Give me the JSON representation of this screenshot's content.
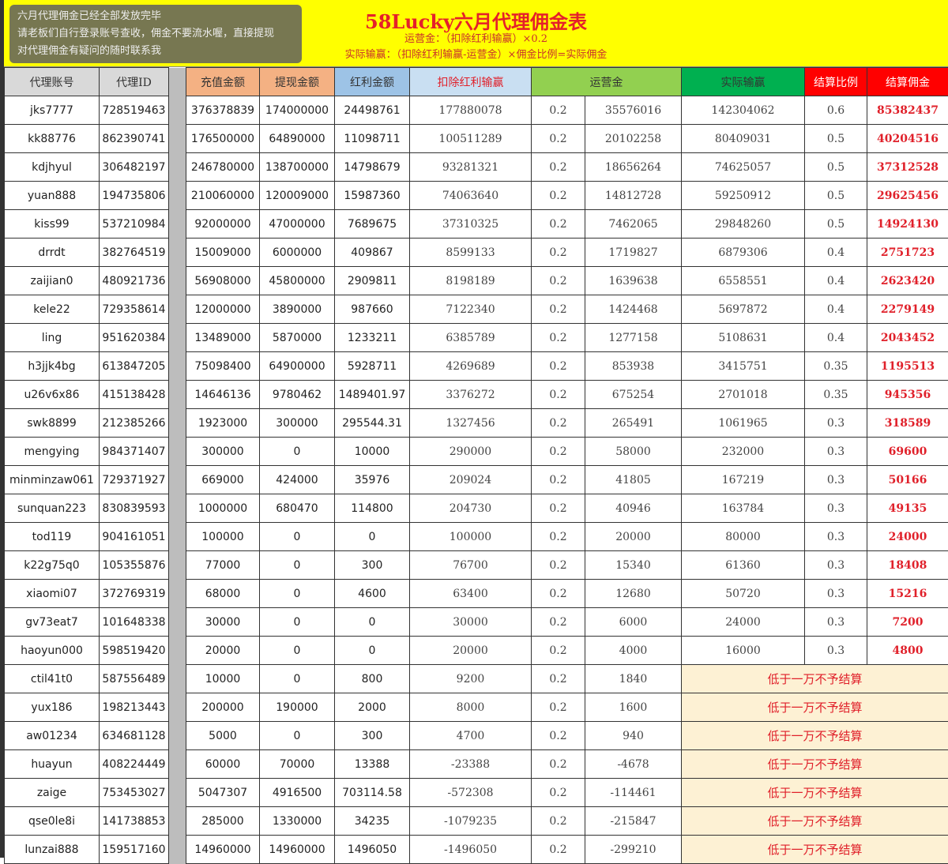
{
  "title": "58Lucky六月代理佣金表",
  "formula1": "运营金：（扣除红利输赢）×0.2",
  "formula2": "实际输赢：（扣除红利输赢-运营金）×佣金比例=实际佣金",
  "headers": [
    {
      "label": "代理账号",
      "bg": "#d9d9d9",
      "color": "#333"
    },
    {
      "label": "代理ID",
      "bg": "#d9d9d9",
      "color": "#333"
    },
    {
      "label": "",
      "bg": "#bdbdbd",
      "color": "#333"
    },
    {
      "label": "充值金额",
      "bg": "#f4b183",
      "color": "#333"
    },
    {
      "label": "提现金额",
      "bg": "#f4b183",
      "color": "#333"
    },
    {
      "label": "红利金额",
      "bg": "#9dc3e6",
      "color": "#333"
    },
    {
      "label": "扣除红利输赢",
      "bg": "#c9dff2",
      "color": "#e0202a"
    },
    {
      "label": "运营金",
      "bg": "#92d050",
      "color": "#333"
    },
    {
      "label": "实际输赢",
      "bg": "#00b050",
      "color": "#333"
    },
    {
      "label": "结算比例",
      "bg": "#ff0000",
      "color": "#fff"
    },
    {
      "label": "结算佣金",
      "bg": "#ff0000",
      "color": "#fff"
    }
  ],
  "note_text": "低于一万不予结算",
  "rows": [
    [
      "jks7777",
      "728519463",
      "376378839",
      "174000000",
      "24498761",
      "177880078",
      "0.2",
      "35576016",
      "142304062",
      "0.6",
      "85382437"
    ],
    [
      "kk88776",
      "862390741",
      "176500000",
      "64890000",
      "11098711",
      "100511289",
      "0.2",
      "20102258",
      "80409031",
      "0.5",
      "40204516"
    ],
    [
      "kdjhyul",
      "306482197",
      "246780000",
      "138700000",
      "14798679",
      "93281321",
      "0.2",
      "18656264",
      "74625057",
      "0.5",
      "37312528"
    ],
    [
      "yuan888",
      "194735806",
      "210060000",
      "120009000",
      "15987360",
      "74063640",
      "0.2",
      "14812728",
      "59250912",
      "0.5",
      "29625456"
    ],
    [
      "kiss99",
      "537210984",
      "92000000",
      "47000000",
      "7689675",
      "37310325",
      "0.2",
      "7462065",
      "29848260",
      "0.5",
      "14924130"
    ],
    [
      "drrdt",
      "382764519",
      "15009000",
      "6000000",
      "409867",
      "8599133",
      "0.2",
      "1719827",
      "6879306",
      "0.4",
      "2751723"
    ],
    [
      "zaijian0",
      "480921736",
      "56908000",
      "45800000",
      "2909811",
      "8198189",
      "0.2",
      "1639638",
      "6558551",
      "0.4",
      "2623420"
    ],
    [
      "kele22",
      "729358614",
      "12000000",
      "3890000",
      "987660",
      "7122340",
      "0.2",
      "1424468",
      "5697872",
      "0.4",
      "2279149"
    ],
    [
      "ling",
      "951620384",
      "13489000",
      "5870000",
      "1233211",
      "6385789",
      "0.2",
      "1277158",
      "5108631",
      "0.4",
      "2043452"
    ],
    [
      "h3jjk4bg",
      "613847205",
      "75098400",
      "64900000",
      "5928711",
      "4269689",
      "0.2",
      "853938",
      "3415751",
      "0.35",
      "1195513"
    ],
    [
      "u26v6x86",
      "415138428",
      "14646136",
      "9780462",
      "1489401.97",
      "3376272",
      "0.2",
      "675254",
      "2701018",
      "0.35",
      "945356"
    ],
    [
      "swk8899",
      "212385266",
      "1923000",
      "300000",
      "295544.31",
      "1327456",
      "0.2",
      "265491",
      "1061965",
      "0.3",
      "318589"
    ],
    [
      "mengying",
      "984371407",
      "300000",
      "0",
      "10000",
      "290000",
      "0.2",
      "58000",
      "232000",
      "0.3",
      "69600"
    ],
    [
      "minminzaw061",
      "729371927",
      "669000",
      "424000",
      "35976",
      "209024",
      "0.2",
      "41805",
      "167219",
      "0.3",
      "50166"
    ],
    [
      "sunquan223",
      "830839593",
      "1000000",
      "680470",
      "114800",
      "204730",
      "0.2",
      "40946",
      "163784",
      "0.3",
      "49135"
    ],
    [
      "tod119",
      "904161051",
      "100000",
      "0",
      "0",
      "100000",
      "0.2",
      "20000",
      "80000",
      "0.3",
      "24000"
    ],
    [
      "k22g75q0",
      "105355876",
      "77000",
      "0",
      "300",
      "76700",
      "0.2",
      "15340",
      "61360",
      "0.3",
      "18408"
    ],
    [
      "xiaomi07",
      "372769319",
      "68000",
      "0",
      "4600",
      "63400",
      "0.2",
      "12680",
      "50720",
      "0.3",
      "15216"
    ],
    [
      "gv73eat7",
      "101648338",
      "30000",
      "0",
      "0",
      "30000",
      "0.2",
      "6000",
      "24000",
      "0.3",
      "7200"
    ],
    [
      "haoyun000",
      "598519420",
      "20000",
      "0",
      "0",
      "20000",
      "0.2",
      "4000",
      "16000",
      "0.3",
      "4800"
    ],
    [
      "ctil41t0",
      "587556489",
      "10000",
      "0",
      "800",
      "9200",
      "0.2",
      "1840"
    ],
    [
      "yux186",
      "198213443",
      "200000",
      "190000",
      "2000",
      "8000",
      "0.2",
      "1600"
    ],
    [
      "aw01234",
      "634681128",
      "5000",
      "0",
      "300",
      "4700",
      "0.2",
      "940"
    ],
    [
      "huayun",
      "408224449",
      "60000",
      "70000",
      "13388",
      "-23388",
      "0.2",
      "-4678"
    ],
    [
      "zaige",
      "753453027",
      "5047307",
      "4916500",
      "703114.58",
      "-572308",
      "0.2",
      "-114461"
    ],
    [
      "qse0le8i",
      "141738853",
      "285000",
      "1330000",
      "34235",
      "-1079235",
      "0.2",
      "-215847"
    ],
    [
      "lunzai888",
      "159517160",
      "14960000",
      "14960000",
      "1496050",
      "-1496050",
      "0.2",
      "-299210"
    ]
  ],
  "toast": {
    "lines": [
      "六月代理佣金已经全部发放完毕",
      "请老板们自行登录账号查收，佣金不要流水喔，直接提现",
      "对代理佣金有疑问的随时联系我"
    ]
  }
}
